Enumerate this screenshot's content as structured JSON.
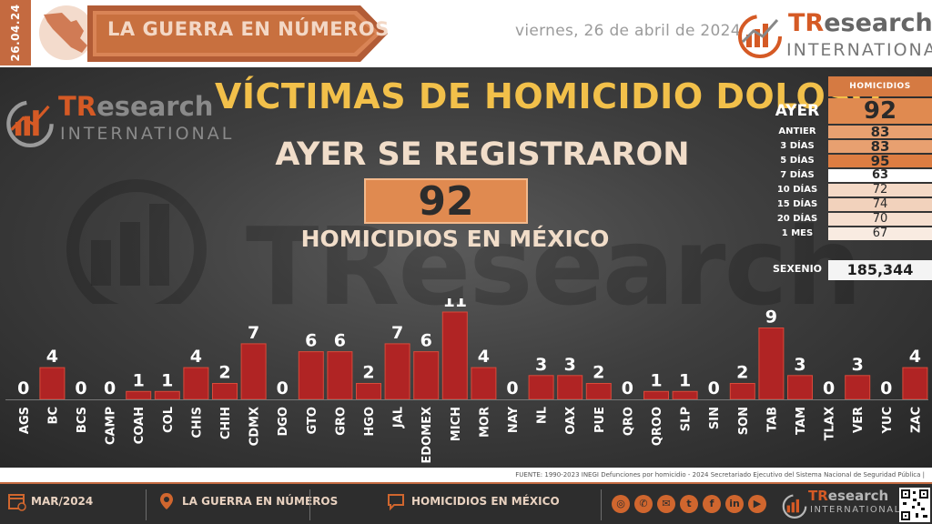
{
  "header": {
    "date_code": "26.04.24",
    "banner_title": "LA GUERRA EN NÚMEROS",
    "date_text": "viernes, 26 de abril de 2024",
    "brand_tr": "TR",
    "brand_rest": "esearch",
    "brand_intl": "INTERNATIONAL"
  },
  "main": {
    "title": "VÍCTIMAS DE HOMICIDIO DOLOSO",
    "subtitle": "AYER SE REGISTRARON",
    "big_count": "92",
    "caption": "HOMICIDIOS EN MÉXICO",
    "watermark": "TResearch"
  },
  "stats": {
    "header": "HOMICIDIOS",
    "rows": [
      {
        "label": "AYER",
        "value": "92",
        "bg": "#e08a50"
      },
      {
        "label": "ANTIER",
        "value": "83",
        "bg": "#e8a070"
      },
      {
        "label": "3 DÍAS",
        "value": "83",
        "bg": "#e8a070"
      },
      {
        "label": "5 DÍAS",
        "value": "95",
        "bg": "#dd7d42"
      },
      {
        "label": "7 DÍAS",
        "value": "63",
        "bg": "#ffffff"
      },
      {
        "label": "10 DÍAS",
        "value": "72",
        "bg": "#f4d9c6"
      },
      {
        "label": "15 DÍAS",
        "value": "74",
        "bg": "#f2d2bc"
      },
      {
        "label": "20 DÍAS",
        "value": "70",
        "bg": "#f6dfcf"
      },
      {
        "label": "1 MES",
        "value": "67",
        "bg": "#f9ebe1"
      }
    ],
    "sexenio_label": "SEXENIO",
    "sexenio_value": "185,344"
  },
  "chart_data": {
    "type": "bar",
    "categories": [
      "AGS",
      "BC",
      "BCS",
      "CAMP",
      "COAH",
      "COL",
      "CHIS",
      "CHIH",
      "CDMX",
      "DGO",
      "GTO",
      "GRO",
      "HGO",
      "JAL",
      "EDOMEX",
      "MICH",
      "MOR",
      "NAY",
      "NL",
      "OAX",
      "PUE",
      "QRO",
      "QROO",
      "SLP",
      "SIN",
      "SON",
      "TAB",
      "TAM",
      "TLAX",
      "VER",
      "YUC",
      "ZAC"
    ],
    "values": [
      0,
      4,
      0,
      0,
      1,
      1,
      4,
      2,
      7,
      0,
      6,
      6,
      2,
      7,
      6,
      11,
      4,
      0,
      3,
      3,
      2,
      0,
      1,
      1,
      0,
      2,
      9,
      3,
      0,
      3,
      0,
      4
    ],
    "ylim": [
      0,
      11
    ],
    "grid": false,
    "bar_color": "#b02424"
  },
  "source": "FUENTE: 1990-2023 INEGI Defunciones por homicidio - 2024 Secretariado Ejecutivo del Sistema Nacional de Seguridad Pública |",
  "footer": {
    "period": "MAR/2024",
    "section": "LA GUERRA EN NÚMEROS",
    "topic": "HOMICIDIOS EN MÉXICO",
    "social": [
      "globe-icon",
      "whatsapp-icon",
      "mail-icon",
      "twitter-icon",
      "facebook-icon",
      "linkedin-icon",
      "youtube-icon"
    ]
  },
  "colors": {
    "accent": "#c46a40",
    "title": "#f2c04a",
    "bar": "#b02424"
  }
}
